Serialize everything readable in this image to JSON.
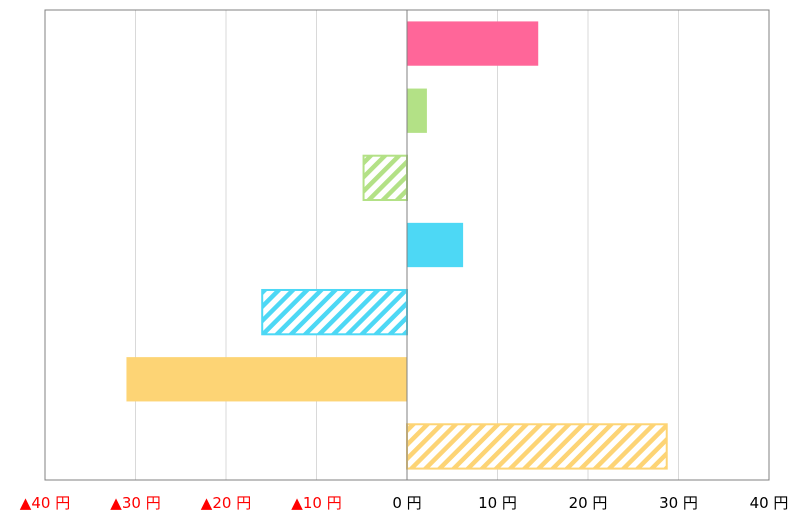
{
  "chart_data": {
    "type": "bar",
    "orientation": "horizontal",
    "title": "",
    "xlabel": "",
    "ylabel": "",
    "xlim": [
      -40,
      40
    ],
    "grid": true,
    "legend": "none",
    "x_ticks": [
      {
        "value": -40,
        "label": "▲40 円",
        "color": "#ff0000"
      },
      {
        "value": -30,
        "label": "▲30 円",
        "color": "#ff0000"
      },
      {
        "value": -20,
        "label": "▲20 円",
        "color": "#ff0000"
      },
      {
        "value": -10,
        "label": "▲10 円",
        "color": "#ff0000"
      },
      {
        "value": 0,
        "label": "0 円",
        "color": "#000000"
      },
      {
        "value": 10,
        "label": "10 円",
        "color": "#000000"
      },
      {
        "value": 20,
        "label": "20 円",
        "color": "#000000"
      },
      {
        "value": 30,
        "label": "30 円",
        "color": "#000000"
      },
      {
        "value": 40,
        "label": "40 円",
        "color": "#000000"
      }
    ],
    "bars": [
      {
        "value": 14.5,
        "color": "#ff6699",
        "fill": "solid"
      },
      {
        "value": 2.2,
        "color": "#b3e186",
        "fill": "solid"
      },
      {
        "value": -4.8,
        "color": "#b3e186",
        "fill": "hatched"
      },
      {
        "value": 6.2,
        "color": "#4dd8f5",
        "fill": "solid"
      },
      {
        "value": -16.0,
        "color": "#4dd8f5",
        "fill": "hatched"
      },
      {
        "value": -31.0,
        "color": "#fdd475",
        "fill": "solid"
      },
      {
        "value": 28.7,
        "color": "#fdd475",
        "fill": "hatched"
      }
    ]
  }
}
